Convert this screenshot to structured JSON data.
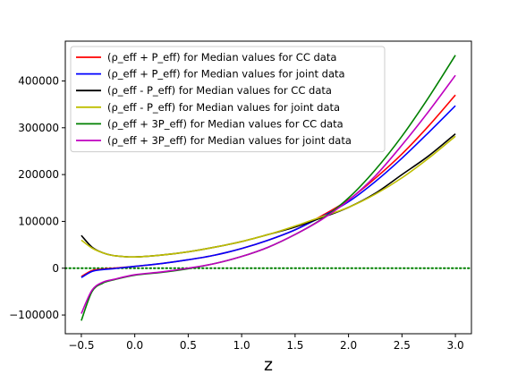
{
  "chart_data": {
    "type": "line",
    "title": "",
    "xlabel": "z",
    "ylabel": "",
    "xlim": [
      -0.65,
      3.15
    ],
    "ylim": [
      -140000,
      485000
    ],
    "xticks": [
      -0.5,
      0.0,
      0.5,
      1.0,
      1.5,
      2.0,
      2.5,
      3.0
    ],
    "xtick_labels": [
      "−0.5",
      "0.0",
      "0.5",
      "1.0",
      "1.5",
      "2.0",
      "2.5",
      "3.0"
    ],
    "yticks": [
      -100000,
      0,
      100000,
      200000,
      300000,
      400000
    ],
    "ytick_labels": [
      "−100000",
      "0",
      "100000",
      "200000",
      "300000",
      "400000"
    ],
    "grid": false,
    "legend_position": "top-left",
    "reference_line": {
      "y": 0,
      "color": "#008000",
      "style": "dotted"
    },
    "x": [
      -0.5,
      -0.4,
      -0.3,
      -0.2,
      0.0,
      0.25,
      0.5,
      0.75,
      1.0,
      1.25,
      1.5,
      1.75,
      2.0,
      2.25,
      2.5,
      2.75,
      3.0
    ],
    "series": [
      {
        "name": "(ρ_eff + P_eff) for Median values for CC data",
        "color": "#ff0000",
        "values": [
          -18000,
          -5000,
          -2000,
          0,
          4000,
          10000,
          18000,
          28000,
          42000,
          60000,
          82000,
          112000,
          146000,
          192000,
          244000,
          304000,
          370000
        ]
      },
      {
        "name": "(ρ_eff + P_eff) for Median values for joint data",
        "color": "#0000ff",
        "values": [
          -20000,
          -7000,
          -3000,
          -1000,
          4000,
          10000,
          18000,
          28000,
          42000,
          60000,
          82000,
          110000,
          142000,
          185000,
          235000,
          290000,
          347000
        ]
      },
      {
        "name": "(ρ_eff - P_eff) for Median values for CC data",
        "color": "#000000",
        "values": [
          70000,
          45000,
          33000,
          27000,
          24000,
          28000,
          35000,
          45000,
          57000,
          72000,
          88000,
          108000,
          130000,
          160000,
          200000,
          240000,
          287000
        ]
      },
      {
        "name": "(ρ_eff - P_eff) for Median values for joint data",
        "color": "#bfbf00",
        "values": [
          60000,
          43000,
          33000,
          27000,
          24000,
          28000,
          35000,
          45000,
          57000,
          72000,
          90000,
          110000,
          130000,
          158000,
          193000,
          235000,
          282000
        ]
      },
      {
        "name": "(ρ_eff + 3P_eff) for Median values for CC data",
        "color": "#008000",
        "values": [
          -112000,
          -50000,
          -32000,
          -25000,
          -15000,
          -9000,
          -1000,
          10000,
          25000,
          45000,
          72000,
          105000,
          150000,
          210000,
          282000,
          365000,
          455000
        ]
      },
      {
        "name": "(ρ_eff + 3P_eff) for Median values for joint data",
        "color": "#bf00bf",
        "values": [
          -97000,
          -47000,
          -30000,
          -24000,
          -14000,
          -8000,
          0,
          10000,
          25000,
          45000,
          72000,
          104000,
          145000,
          197000,
          263000,
          335000,
          412000
        ]
      }
    ]
  }
}
